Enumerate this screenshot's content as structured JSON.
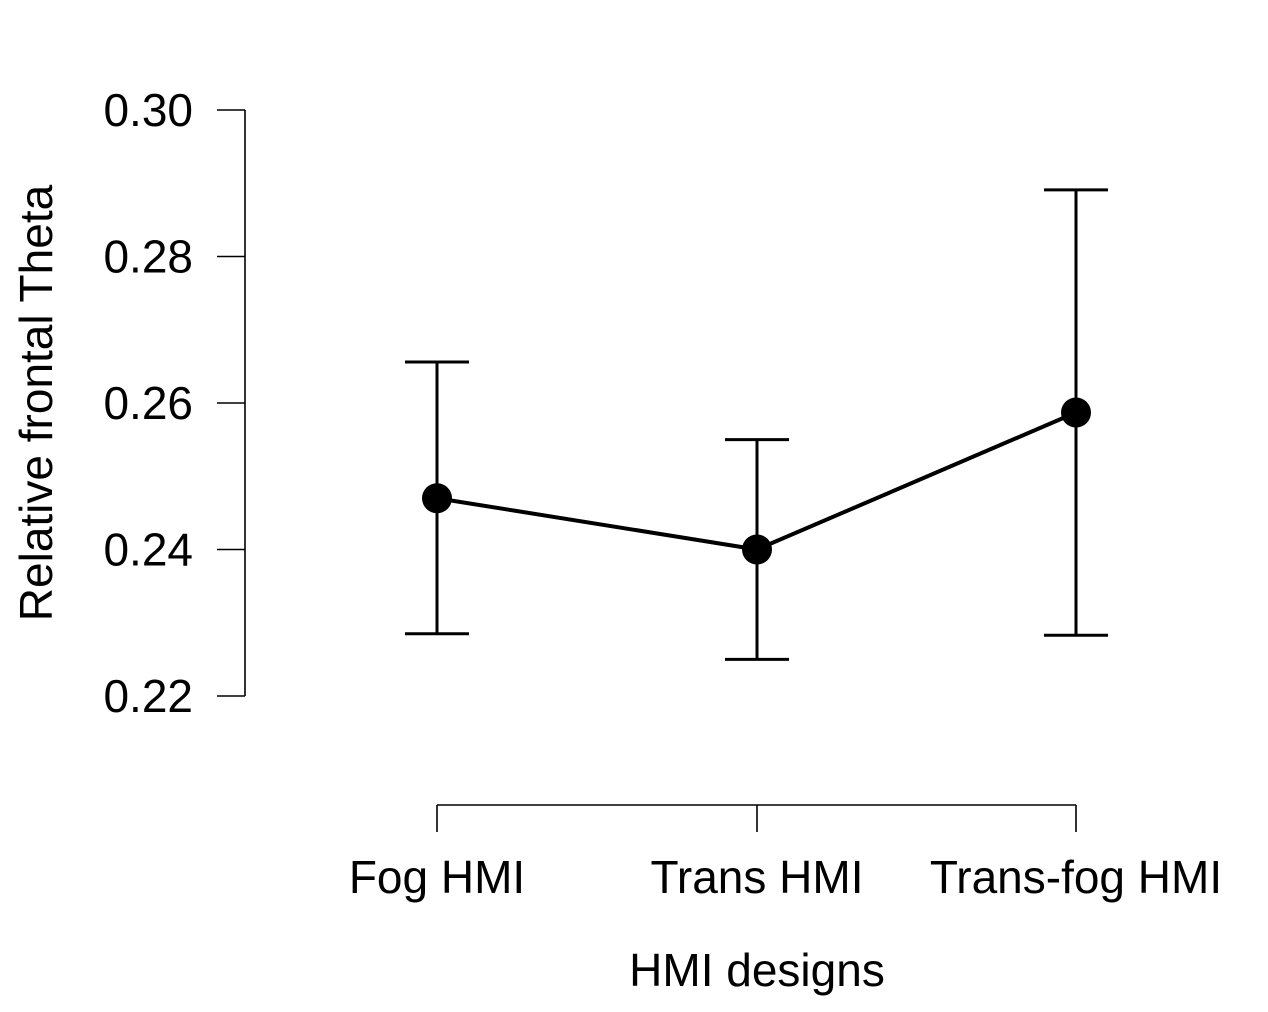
{
  "chart_data": {
    "type": "line",
    "title": "",
    "xlabel": "HMI designs",
    "ylabel": "Relative frontal Theta",
    "categories": [
      "Fog HMI",
      "Trans HMI",
      "Trans-fog HMI"
    ],
    "series": [
      {
        "values": [
          0.247,
          0.24,
          0.2587
        ],
        "error_lower": [
          0.2285,
          0.225,
          0.2283
        ],
        "error_upper": [
          0.2656,
          0.255,
          0.2891
        ]
      }
    ],
    "y_ticks": [
      "0.22",
      "0.24",
      "0.26",
      "0.28",
      "0.30"
    ],
    "ylim": [
      0.22,
      0.3
    ],
    "grid": false,
    "legend": "none",
    "colors": {
      "line": "#000000",
      "marker": "#000000",
      "axis": "#000000"
    }
  }
}
